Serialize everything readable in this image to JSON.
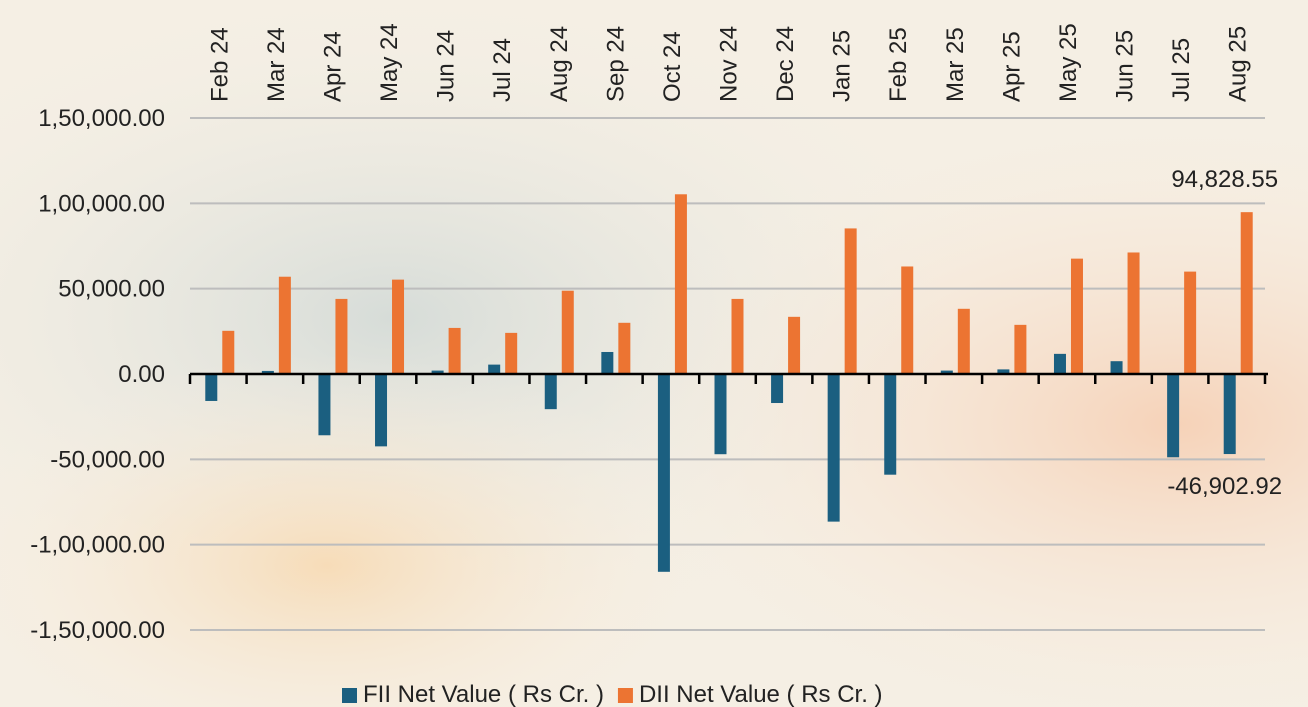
{
  "chart_data": {
    "type": "bar",
    "categories": [
      "Feb 24",
      "Mar 24",
      "Apr 24",
      "May 24",
      "Jun 24",
      "Jul 24",
      "Aug 24",
      "Sep 24",
      "Oct 24",
      "Nov 24",
      "Dec 24",
      "Jan 25",
      "Feb 25",
      "Mar 25",
      "Apr 25",
      "May 25",
      "Jun 25",
      "Jul 25",
      "Aug 25"
    ],
    "series": [
      {
        "name": "FII Net Value ( Rs Cr. )",
        "color": "#1b5f80",
        "values": [
          -15800,
          1800,
          -35900,
          -42400,
          2000,
          5500,
          -20600,
          12900,
          -115900,
          -47000,
          -17000,
          -86500,
          -59000,
          2000,
          2700,
          11800,
          7500,
          -48800,
          -46902.92
        ],
        "value_labels": [
          null,
          null,
          null,
          null,
          null,
          null,
          null,
          null,
          null,
          null,
          null,
          null,
          null,
          null,
          null,
          null,
          null,
          null,
          "-46,902.92"
        ]
      },
      {
        "name": "DII Net Value ( Rs Cr. )",
        "color": "#ec7432",
        "values": [
          25300,
          57000,
          44000,
          55300,
          27000,
          24100,
          48800,
          30000,
          105300,
          44000,
          33500,
          85300,
          63000,
          38200,
          28800,
          67600,
          71200,
          60000,
          94828.55
        ],
        "value_labels": [
          null,
          null,
          null,
          null,
          null,
          null,
          null,
          null,
          null,
          null,
          null,
          null,
          null,
          null,
          null,
          null,
          null,
          null,
          "94,828.55"
        ]
      }
    ],
    "ylim": [
      -150000,
      150000
    ],
    "yticks": [
      {
        "value": -150000,
        "label": "-1,50,000.00"
      },
      {
        "value": -100000,
        "label": "-1,00,000.00"
      },
      {
        "value": -50000,
        "label": "-50,000.00"
      },
      {
        "value": 0,
        "label": "0.00"
      },
      {
        "value": 50000,
        "label": "50,000.00"
      },
      {
        "value": 100000,
        "label": "1,00,000.00"
      },
      {
        "value": 150000,
        "label": "1,50,000.00"
      }
    ],
    "grid": true,
    "legend": "bottom"
  }
}
